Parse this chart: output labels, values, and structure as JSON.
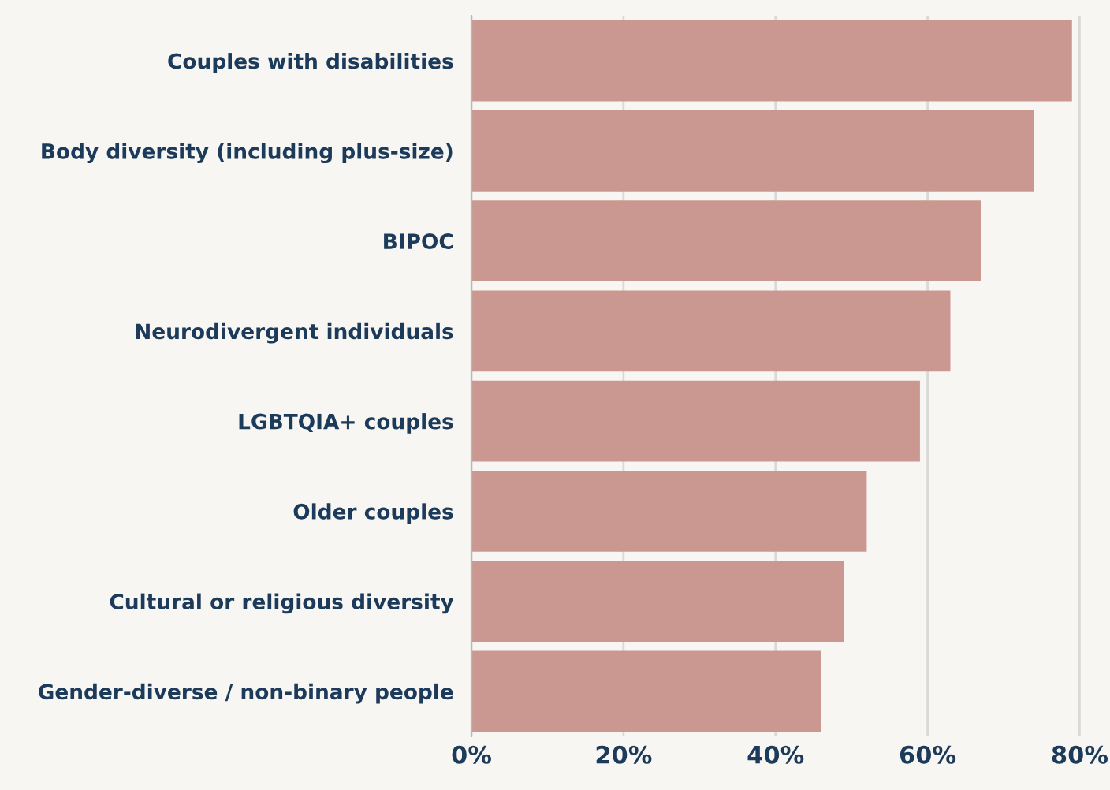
{
  "chart_data": {
    "type": "bar",
    "orientation": "horizontal",
    "categories": [
      "Couples with disabilities",
      "Body diversity (including plus-size)",
      "BIPOC",
      "Neurodivergent individuals",
      "LGBTQIA+ couples",
      "Older couples",
      "Cultural or religious diversity",
      "Gender-diverse / non-binary people"
    ],
    "values": [
      79,
      74,
      67,
      63,
      59,
      52,
      49,
      46
    ],
    "color": "#cb9891",
    "xlim": [
      0,
      84
    ],
    "xticks": [
      {
        "value": 0,
        "label": "0%"
      },
      {
        "value": 20,
        "label": "20%"
      },
      {
        "value": 40,
        "label": "40%"
      },
      {
        "value": 60,
        "label": "60%"
      },
      {
        "value": 80,
        "label": "80%"
      }
    ],
    "grid": "x"
  }
}
